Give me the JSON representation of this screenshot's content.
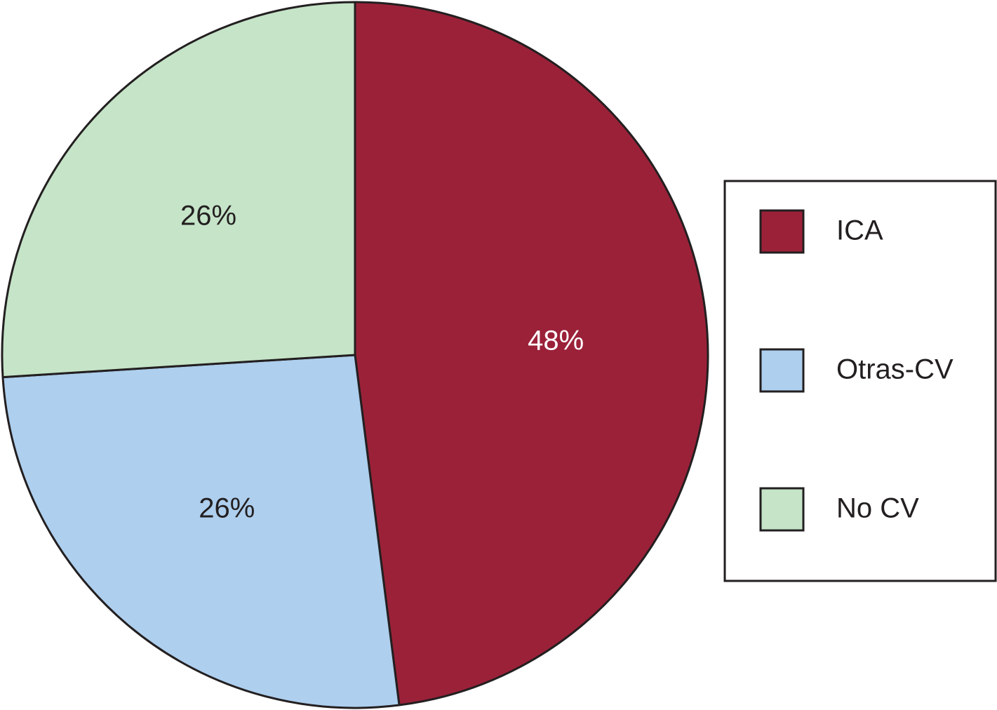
{
  "chart_data": {
    "type": "pie",
    "categories": [
      "ICA",
      "Otras-CV",
      "No CV"
    ],
    "values": [
      48,
      26,
      26
    ],
    "value_labels": [
      "48%",
      "26%",
      "26%"
    ],
    "colors": [
      "#9b2139",
      "#aecfee",
      "#c5e4c8"
    ],
    "label_colors": [
      "#ffffff",
      "#231f20",
      "#231f20"
    ],
    "legend": "right"
  }
}
